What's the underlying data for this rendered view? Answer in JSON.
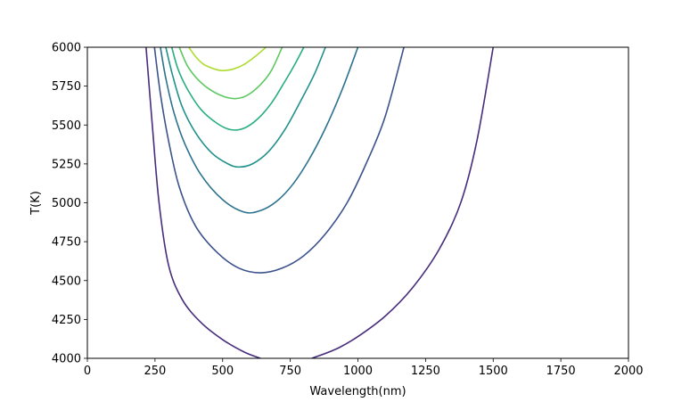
{
  "chart_data": {
    "type": "line",
    "subtype": "contour",
    "title": "",
    "xlabel": "Wavelength(nm)",
    "ylabel": "T(K)",
    "xlim": [
      0,
      2000
    ],
    "ylim": [
      4000,
      6000
    ],
    "xticks": [
      0,
      250,
      500,
      750,
      1000,
      1250,
      1500,
      1750,
      2000
    ],
    "yticks": [
      4000,
      4250,
      4500,
      4750,
      5000,
      5250,
      5500,
      5750,
      6000
    ],
    "grid": false,
    "legend": "none",
    "colormap": "viridis",
    "series": [
      {
        "color": "#472d7b",
        "points": [
          [
            217,
            6000
          ],
          [
            240,
            5500
          ],
          [
            265,
            5000
          ],
          [
            300,
            4600
          ],
          [
            350,
            4380
          ],
          [
            420,
            4230
          ],
          [
            500,
            4120
          ],
          [
            580,
            4040
          ],
          [
            640,
            4000
          ]
        ],
        "points_right": [
          [
            830,
            4000
          ],
          [
            920,
            4060
          ],
          [
            1000,
            4140
          ],
          [
            1100,
            4270
          ],
          [
            1200,
            4450
          ],
          [
            1300,
            4700
          ],
          [
            1380,
            5000
          ],
          [
            1440,
            5400
          ],
          [
            1500,
            6000
          ]
        ]
      },
      {
        "color": "#3b528b",
        "points": [
          [
            248,
            6000
          ],
          [
            270,
            5700
          ],
          [
            300,
            5400
          ],
          [
            340,
            5100
          ],
          [
            400,
            4850
          ],
          [
            480,
            4680
          ],
          [
            560,
            4580
          ],
          [
            640,
            4550
          ],
          [
            720,
            4580
          ],
          [
            800,
            4660
          ],
          [
            880,
            4800
          ],
          [
            960,
            5000
          ],
          [
            1030,
            5250
          ],
          [
            1100,
            5550
          ],
          [
            1170,
            6000
          ]
        ]
      },
      {
        "color": "#2c728e",
        "points": [
          [
            270,
            6000
          ],
          [
            290,
            5800
          ],
          [
            320,
            5580
          ],
          [
            360,
            5380
          ],
          [
            420,
            5180
          ],
          [
            500,
            5020
          ],
          [
            580,
            4940
          ],
          [
            640,
            4950
          ],
          [
            700,
            5010
          ],
          [
            760,
            5120
          ],
          [
            820,
            5280
          ],
          [
            880,
            5480
          ],
          [
            940,
            5720
          ],
          [
            1000,
            6000
          ]
        ]
      },
      {
        "color": "#21918c",
        "points": [
          [
            290,
            6000
          ],
          [
            315,
            5820
          ],
          [
            350,
            5620
          ],
          [
            400,
            5450
          ],
          [
            460,
            5320
          ],
          [
            520,
            5250
          ],
          [
            560,
            5230
          ],
          [
            610,
            5250
          ],
          [
            670,
            5330
          ],
          [
            730,
            5470
          ],
          [
            790,
            5660
          ],
          [
            840,
            5830
          ],
          [
            880,
            6000
          ]
        ]
      },
      {
        "color": "#28ae80",
        "points": [
          [
            312,
            6000
          ],
          [
            335,
            5860
          ],
          [
            370,
            5730
          ],
          [
            420,
            5600
          ],
          [
            480,
            5510
          ],
          [
            530,
            5470
          ],
          [
            580,
            5480
          ],
          [
            630,
            5540
          ],
          [
            680,
            5640
          ],
          [
            730,
            5780
          ],
          [
            770,
            5900
          ],
          [
            800,
            6000
          ]
        ]
      },
      {
        "color": "#5ec962",
        "points": [
          [
            340,
            6000
          ],
          [
            370,
            5880
          ],
          [
            410,
            5790
          ],
          [
            460,
            5720
          ],
          [
            510,
            5680
          ],
          [
            550,
            5670
          ],
          [
            590,
            5690
          ],
          [
            640,
            5760
          ],
          [
            680,
            5850
          ],
          [
            720,
            6000
          ]
        ]
      },
      {
        "color": "#addc30",
        "points": [
          [
            375,
            6000
          ],
          [
            400,
            5940
          ],
          [
            430,
            5890
          ],
          [
            470,
            5860
          ],
          [
            500,
            5850
          ],
          [
            540,
            5860
          ],
          [
            580,
            5890
          ],
          [
            620,
            5940
          ],
          [
            660,
            6000
          ]
        ]
      }
    ]
  }
}
